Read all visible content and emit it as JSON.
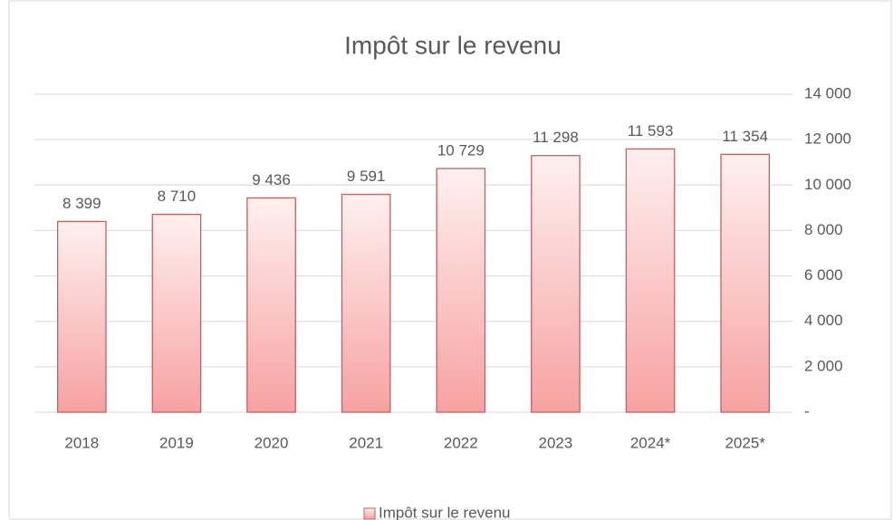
{
  "chart_data": {
    "type": "bar",
    "title": "Impôt sur le revenu",
    "categories": [
      "2018",
      "2019",
      "2020",
      "2021",
      "2022",
      "2023",
      "2024*",
      "2025*"
    ],
    "series": [
      {
        "name": "Impôt sur le revenu",
        "color": "#f7a1a1",
        "values": [
          8399,
          8710,
          9436,
          9591,
          10729,
          11298,
          11593,
          11354
        ],
        "value_labels": [
          "8 399",
          "8 710",
          "9 436",
          "9 591",
          "10 729",
          "11 298",
          "11 593",
          "11 354"
        ]
      }
    ],
    "ylim": [
      0,
      14000
    ],
    "yticks": [
      {
        "value": 0,
        "label": "-"
      },
      {
        "value": 2000,
        "label": "2 000"
      },
      {
        "value": 4000,
        "label": "4 000"
      },
      {
        "value": 6000,
        "label": "6 000"
      },
      {
        "value": 8000,
        "label": "8 000"
      },
      {
        "value": 10000,
        "label": "10 000"
      },
      {
        "value": 12000,
        "label": "12 000"
      },
      {
        "value": 14000,
        "label": "14 000"
      }
    ],
    "grid": true,
    "legend": "bottom"
  }
}
